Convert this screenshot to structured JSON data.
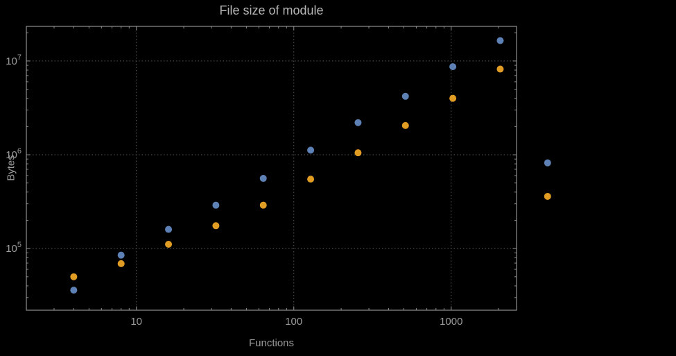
{
  "window": {
    "background": "#000000"
  },
  "chart_data": {
    "type": "scatter",
    "title": "File size of module",
    "xlabel": "Functions",
    "ylabel": "Bytes",
    "x_scale": "log",
    "y_scale": "log",
    "grid": "dotted major gridlines at decades, both axes",
    "legend": "none",
    "frame": true,
    "xlim": [
      2,
      2600
    ],
    "ylim": [
      22000,
      23400000
    ],
    "x": [
      4,
      8,
      16,
      32,
      64,
      128,
      256,
      512,
      1024,
      2048,
      4096
    ],
    "series": [
      {
        "name": "blue-points",
        "color": "#5E81B5",
        "values": [
          36000,
          85000,
          160000,
          290000,
          560000,
          1120000,
          2200000,
          4200000,
          8700000,
          16500000,
          820000
        ]
      },
      {
        "name": "orange-points",
        "color": "#E19C24",
        "values": [
          50000,
          69000,
          111000,
          175000,
          290000,
          550000,
          1050000,
          2050000,
          4000000,
          8200000,
          360000
        ]
      }
    ],
    "xticks": [
      {
        "value": 10,
        "label": "10"
      },
      {
        "value": 100,
        "label": "100"
      },
      {
        "value": 1000,
        "label": "1000"
      }
    ],
    "yticks": [
      {
        "value": 100000,
        "label": "10^5"
      },
      {
        "value": 1000000,
        "label": "10^6"
      },
      {
        "value": 10000000,
        "label": "10^7"
      }
    ],
    "colors": {
      "grid": "#5a5a5a",
      "frame": "#8f8f8f",
      "tick_text": "#9c9c9c",
      "title_text": "#b5b5b5",
      "axis_label_text": "#9c9c9c",
      "background": "#000000"
    }
  }
}
